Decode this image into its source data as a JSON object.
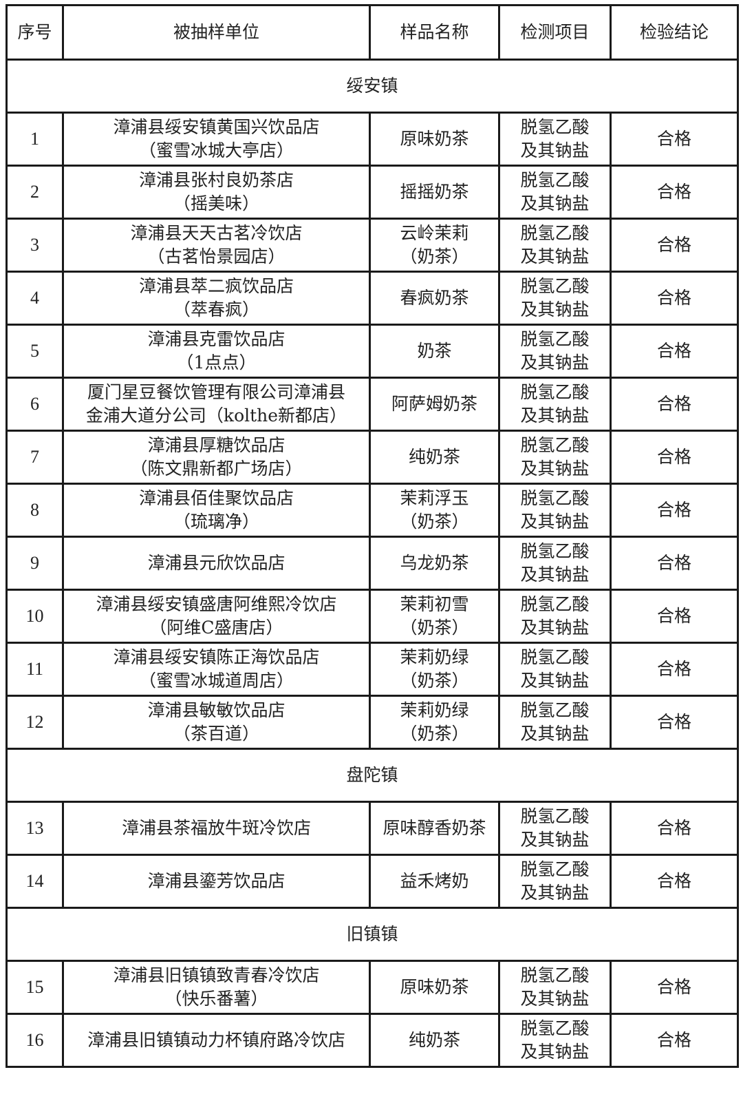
{
  "headers": [
    "序号",
    "被抽样单位",
    "样品名称",
    "检测项目",
    "检验结论"
  ],
  "sections": [
    {
      "name": "绥安镇",
      "rows": [
        {
          "no": "1",
          "unit": [
            "漳浦县绥安镇黄国兴饮品店",
            "（蜜雪冰城大亭店）"
          ],
          "sample": [
            "原味奶茶"
          ],
          "item": [
            "脱氢乙酸",
            "及其钠盐"
          ],
          "result": "合格"
        },
        {
          "no": "2",
          "unit": [
            "漳浦县张村良奶茶店",
            "（摇美味）"
          ],
          "sample": [
            "摇摇奶茶"
          ],
          "item": [
            "脱氢乙酸",
            "及其钠盐"
          ],
          "result": "合格"
        },
        {
          "no": "3",
          "unit": [
            "漳浦县天天古茗冷饮店",
            "（古茗怡景园店）"
          ],
          "sample": [
            "云岭茉莉",
            "（奶茶）"
          ],
          "item": [
            "脱氢乙酸",
            "及其钠盐"
          ],
          "result": "合格"
        },
        {
          "no": "4",
          "unit": [
            "漳浦县萃二疯饮品店",
            "（萃春疯）"
          ],
          "sample": [
            "春疯奶茶"
          ],
          "item": [
            "脱氢乙酸",
            "及其钠盐"
          ],
          "result": "合格"
        },
        {
          "no": "5",
          "unit": [
            "漳浦县克雷饮品店",
            "（1点点）"
          ],
          "sample": [
            "奶茶"
          ],
          "item": [
            "脱氢乙酸",
            "及其钠盐"
          ],
          "result": "合格"
        },
        {
          "no": "6",
          "unit": [
            "厦门星豆餐饮管理有限公司漳浦县",
            "金浦大道分公司（kolthe新都店）"
          ],
          "sample": [
            "阿萨姆奶茶"
          ],
          "item": [
            "脱氢乙酸",
            "及其钠盐"
          ],
          "result": "合格"
        },
        {
          "no": "7",
          "unit": [
            "漳浦县厚糖饮品店",
            "（陈文鼎新都广场店）"
          ],
          "sample": [
            "纯奶茶"
          ],
          "item": [
            "脱氢乙酸",
            "及其钠盐"
          ],
          "result": "合格"
        },
        {
          "no": "8",
          "unit": [
            "漳浦县佰佳聚饮品店",
            "（琉璃净）"
          ],
          "sample": [
            "茉莉浮玉",
            "（奶茶）"
          ],
          "item": [
            "脱氢乙酸",
            "及其钠盐"
          ],
          "result": "合格"
        },
        {
          "no": "9",
          "unit": [
            "漳浦县元欣饮品店"
          ],
          "sample": [
            "乌龙奶茶"
          ],
          "item": [
            "脱氢乙酸",
            "及其钠盐"
          ],
          "result": "合格"
        },
        {
          "no": "10",
          "unit": [
            "漳浦县绥安镇盛唐阿维熙冷饮店",
            "（阿维C盛唐店）"
          ],
          "sample": [
            "茉莉初雪",
            "（奶茶）"
          ],
          "item": [
            "脱氢乙酸",
            "及其钠盐"
          ],
          "result": "合格"
        },
        {
          "no": "11",
          "unit": [
            "漳浦县绥安镇陈正海饮品店",
            "（蜜雪冰城道周店）"
          ],
          "sample": [
            "茉莉奶绿",
            "（奶茶）"
          ],
          "item": [
            "脱氢乙酸",
            "及其钠盐"
          ],
          "result": "合格"
        },
        {
          "no": "12",
          "unit": [
            "漳浦县敏敏饮品店",
            "（茶百道）"
          ],
          "sample": [
            "茉莉奶绿",
            "（奶茶）"
          ],
          "item": [
            "脱氢乙酸",
            "及其钠盐"
          ],
          "result": "合格"
        }
      ]
    },
    {
      "name": "盘陀镇",
      "rows": [
        {
          "no": "13",
          "unit": [
            "漳浦县茶福放牛斑冷饮店"
          ],
          "sample": [
            "原味醇香奶茶"
          ],
          "item": [
            "脱氢乙酸",
            "及其钠盐"
          ],
          "result": "合格"
        },
        {
          "no": "14",
          "unit": [
            "漳浦县鎏芳饮品店"
          ],
          "sample": [
            "益禾烤奶"
          ],
          "item": [
            "脱氢乙酸",
            "及其钠盐"
          ],
          "result": "合格"
        }
      ]
    },
    {
      "name": "旧镇镇",
      "rows": [
        {
          "no": "15",
          "unit": [
            "漳浦县旧镇镇致青春冷饮店",
            "（快乐番薯）"
          ],
          "sample": [
            "原味奶茶"
          ],
          "item": [
            "脱氢乙酸",
            "及其钠盐"
          ],
          "result": "合格"
        },
        {
          "no": "16",
          "unit": [
            "漳浦县旧镇镇动力杯镇府路冷饮店"
          ],
          "sample": [
            "纯奶茶"
          ],
          "item": [
            "脱氢乙酸",
            "及其钠盐"
          ],
          "result": "合格"
        }
      ]
    }
  ]
}
